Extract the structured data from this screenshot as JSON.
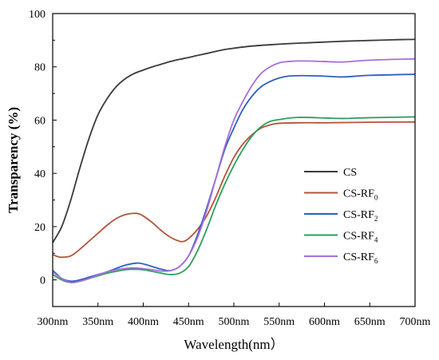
{
  "chart_data": {
    "type": "line",
    "xlabel": "Wavelength(nm）",
    "ylabel": "Transparency (%)",
    "xlim": [
      300,
      700
    ],
    "ylim": [
      -10,
      100
    ],
    "x_ticks": [
      300,
      350,
      400,
      450,
      500,
      550,
      600,
      650,
      700
    ],
    "x_tick_labels": [
      "300nm",
      "350nm",
      "400nm",
      "450nm",
      "500nm",
      "550nm",
      "600nm",
      "650nm",
      "700nm"
    ],
    "y_ticks": [
      0,
      20,
      40,
      60,
      80,
      100
    ],
    "y_tick_labels": [
      "0",
      "20",
      "40",
      "60",
      "80",
      "100"
    ],
    "grid": false,
    "legend_position": "right",
    "series": [
      {
        "name": "CS",
        "name_sub": "",
        "color": "#3a3a3a",
        "points": [
          [
            300,
            14
          ],
          [
            310,
            20
          ],
          [
            320,
            30
          ],
          [
            330,
            42
          ],
          [
            340,
            53
          ],
          [
            350,
            62
          ],
          [
            360,
            68
          ],
          [
            370,
            72.5
          ],
          [
            380,
            75.5
          ],
          [
            390,
            77.5
          ],
          [
            400,
            78.8
          ],
          [
            410,
            80
          ],
          [
            420,
            81
          ],
          [
            430,
            82
          ],
          [
            440,
            82.8
          ],
          [
            450,
            83.5
          ],
          [
            460,
            84.3
          ],
          [
            470,
            85
          ],
          [
            480,
            85.8
          ],
          [
            490,
            86.5
          ],
          [
            500,
            87
          ],
          [
            520,
            87.8
          ],
          [
            540,
            88.3
          ],
          [
            560,
            88.7
          ],
          [
            580,
            89
          ],
          [
            600,
            89.3
          ],
          [
            620,
            89.6
          ],
          [
            640,
            89.8
          ],
          [
            660,
            90
          ],
          [
            680,
            90.2
          ],
          [
            700,
            90.3
          ]
        ]
      },
      {
        "name": "CS-RF",
        "name_sub": "0",
        "color": "#b5533a",
        "points": [
          [
            300,
            9.5
          ],
          [
            305,
            8.8
          ],
          [
            310,
            8.5
          ],
          [
            320,
            9
          ],
          [
            330,
            11.5
          ],
          [
            340,
            14.5
          ],
          [
            350,
            17.5
          ],
          [
            360,
            20.5
          ],
          [
            370,
            23
          ],
          [
            380,
            24.5
          ],
          [
            390,
            25
          ],
          [
            395,
            24.8
          ],
          [
            400,
            24
          ],
          [
            410,
            21.5
          ],
          [
            420,
            18.5
          ],
          [
            430,
            16
          ],
          [
            440,
            14.5
          ],
          [
            445,
            14.5
          ],
          [
            450,
            15.5
          ],
          [
            460,
            19
          ],
          [
            470,
            24
          ],
          [
            480,
            31
          ],
          [
            490,
            39
          ],
          [
            500,
            46
          ],
          [
            510,
            51
          ],
          [
            520,
            54.5
          ],
          [
            530,
            57
          ],
          [
            540,
            58.2
          ],
          [
            550,
            58.8
          ],
          [
            575,
            59
          ],
          [
            600,
            59
          ],
          [
            650,
            59.2
          ],
          [
            700,
            59.3
          ]
        ]
      },
      {
        "name": "CS-RF",
        "name_sub": "2",
        "color": "#2f5fc0",
        "points": [
          [
            300,
            3.5
          ],
          [
            305,
            2
          ],
          [
            310,
            0.5
          ],
          [
            320,
            -0.5
          ],
          [
            330,
            0
          ],
          [
            340,
            1
          ],
          [
            350,
            2
          ],
          [
            360,
            3
          ],
          [
            370,
            4.3
          ],
          [
            380,
            5.5
          ],
          [
            390,
            6.2
          ],
          [
            395,
            6.3
          ],
          [
            400,
            6
          ],
          [
            410,
            5
          ],
          [
            420,
            4
          ],
          [
            430,
            3.5
          ],
          [
            440,
            5
          ],
          [
            450,
            9
          ],
          [
            460,
            17
          ],
          [
            470,
            27
          ],
          [
            480,
            38
          ],
          [
            490,
            49
          ],
          [
            500,
            57
          ],
          [
            510,
            64
          ],
          [
            520,
            69
          ],
          [
            530,
            72.5
          ],
          [
            540,
            74.5
          ],
          [
            550,
            75.8
          ],
          [
            560,
            76.5
          ],
          [
            575,
            76.7
          ],
          [
            600,
            76.5
          ],
          [
            620,
            76.2
          ],
          [
            650,
            76.8
          ],
          [
            700,
            77.2
          ]
        ]
      },
      {
        "name": "CS-RF",
        "name_sub": "4",
        "color": "#2e9e5e",
        "points": [
          [
            300,
            2
          ],
          [
            310,
            0
          ],
          [
            320,
            -1
          ],
          [
            330,
            -0.5
          ],
          [
            340,
            0.5
          ],
          [
            350,
            1.5
          ],
          [
            360,
            2.5
          ],
          [
            370,
            3.2
          ],
          [
            380,
            3.8
          ],
          [
            390,
            4
          ],
          [
            400,
            3.8
          ],
          [
            410,
            3.2
          ],
          [
            420,
            2.5
          ],
          [
            430,
            2
          ],
          [
            440,
            2.5
          ],
          [
            450,
            5
          ],
          [
            460,
            11
          ],
          [
            470,
            19
          ],
          [
            480,
            28
          ],
          [
            490,
            36
          ],
          [
            500,
            43
          ],
          [
            510,
            49
          ],
          [
            520,
            54
          ],
          [
            530,
            57.5
          ],
          [
            540,
            59.5
          ],
          [
            550,
            60.2
          ],
          [
            570,
            61
          ],
          [
            600,
            60.8
          ],
          [
            620,
            60.6
          ],
          [
            650,
            60.9
          ],
          [
            700,
            61.2
          ]
        ]
      },
      {
        "name": "CS-RF",
        "name_sub": "6",
        "color": "#a66fd6",
        "points": [
          [
            300,
            3
          ],
          [
            310,
            0.5
          ],
          [
            320,
            -1
          ],
          [
            330,
            -0.5
          ],
          [
            340,
            0.5
          ],
          [
            350,
            1.8
          ],
          [
            360,
            3
          ],
          [
            370,
            3.8
          ],
          [
            380,
            4.3
          ],
          [
            390,
            4.5
          ],
          [
            400,
            4.2
          ],
          [
            410,
            3.8
          ],
          [
            420,
            3.3
          ],
          [
            430,
            3.5
          ],
          [
            440,
            5
          ],
          [
            450,
            9
          ],
          [
            460,
            16
          ],
          [
            470,
            26
          ],
          [
            480,
            38
          ],
          [
            490,
            50
          ],
          [
            500,
            60
          ],
          [
            510,
            67
          ],
          [
            520,
            73
          ],
          [
            530,
            77.5
          ],
          [
            540,
            80
          ],
          [
            550,
            81.5
          ],
          [
            560,
            82
          ],
          [
            575,
            82.2
          ],
          [
            600,
            82
          ],
          [
            620,
            81.8
          ],
          [
            650,
            82.5
          ],
          [
            700,
            83
          ]
        ]
      }
    ]
  }
}
